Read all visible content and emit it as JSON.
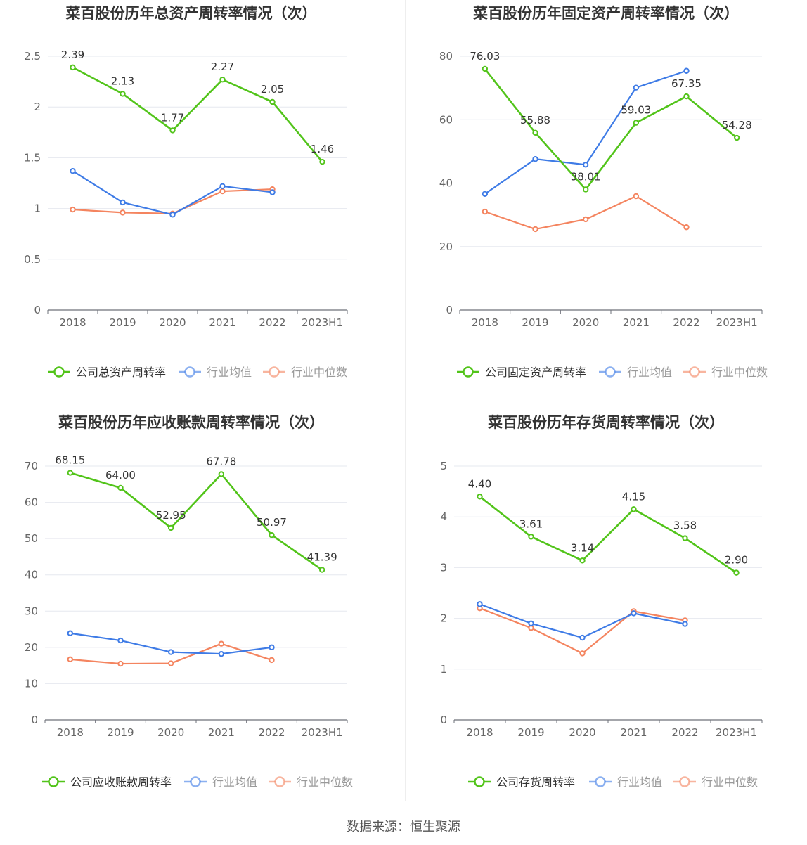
{
  "colors": {
    "company": "#52c41a",
    "avg": "#3e7be6",
    "median": "#f4845f",
    "grid": "#e6e8ef",
    "axis": "#666666"
  },
  "source_text": "数据来源：恒生聚源",
  "chart_data": [
    {
      "type": "line",
      "title": "菜百股份历年总资产周转率情况（次）",
      "categories": [
        "2018",
        "2019",
        "2020",
        "2021",
        "2022",
        "2023H1"
      ],
      "ylim": [
        0,
        2.5
      ],
      "yticks": [
        0,
        0.5,
        1,
        1.5,
        2,
        2.5
      ],
      "ytick_labels": [
        "0",
        "0.5",
        "1",
        "1.5",
        "2",
        "2.5"
      ],
      "legend_position": "bottom",
      "series": [
        {
          "name": "公司总资产周转率",
          "key": "company",
          "values": [
            2.39,
            2.13,
            1.77,
            2.27,
            2.05,
            1.46
          ],
          "labels": [
            "2.39",
            "2.13",
            "1.77",
            "2.27",
            "2.05",
            "1.46"
          ]
        },
        {
          "name": "行业均值",
          "key": "avg",
          "values": [
            1.37,
            1.06,
            0.94,
            1.22,
            1.16,
            null
          ]
        },
        {
          "name": "行业中位数",
          "key": "median",
          "values": [
            0.99,
            0.96,
            0.95,
            1.17,
            1.19,
            null
          ]
        }
      ]
    },
    {
      "type": "line",
      "title": "菜百股份历年固定资产周转率情况（次）",
      "categories": [
        "2018",
        "2019",
        "2020",
        "2021",
        "2022",
        "2023H1"
      ],
      "ylim": [
        0,
        80
      ],
      "yticks": [
        0,
        20,
        40,
        60,
        80
      ],
      "ytick_labels": [
        "0",
        "20",
        "40",
        "60",
        "80"
      ],
      "legend_position": "bottom",
      "series": [
        {
          "name": "公司固定资产周转率",
          "key": "company",
          "values": [
            76.03,
            55.88,
            38.01,
            59.03,
            67.35,
            54.28
          ],
          "labels": [
            "76.03",
            "55.88",
            "38.01",
            "59.03",
            "67.35",
            "54.28"
          ]
        },
        {
          "name": "行业均值",
          "key": "avg",
          "values": [
            36.6,
            47.6,
            45.8,
            70.1,
            75.4,
            null
          ]
        },
        {
          "name": "行业中位数",
          "key": "median",
          "values": [
            31.0,
            25.5,
            28.6,
            35.9,
            26.1,
            null
          ]
        }
      ]
    },
    {
      "type": "line",
      "title": "菜百股份历年应收账款周转率情况（次）",
      "categories": [
        "2018",
        "2019",
        "2020",
        "2021",
        "2022",
        "2023H1"
      ],
      "ylim": [
        0,
        70
      ],
      "yticks": [
        0,
        10,
        20,
        30,
        40,
        50,
        60,
        70
      ],
      "ytick_labels": [
        "0",
        "10",
        "20",
        "30",
        "40",
        "50",
        "60",
        "70"
      ],
      "legend_position": "bottom",
      "series": [
        {
          "name": "公司应收账款周转率",
          "key": "company",
          "values": [
            68.15,
            64.0,
            52.95,
            67.78,
            50.97,
            41.39
          ],
          "labels": [
            "68.15",
            "64.00",
            "52.95",
            "67.78",
            "50.97",
            "41.39"
          ]
        },
        {
          "name": "行业均值",
          "key": "avg",
          "values": [
            23.9,
            21.9,
            18.7,
            18.2,
            20.0,
            null
          ]
        },
        {
          "name": "行业中位数",
          "key": "median",
          "values": [
            16.7,
            15.5,
            15.6,
            21.0,
            16.5,
            null
          ]
        }
      ]
    },
    {
      "type": "line",
      "title": "菜百股份历年存货周转率情况（次）",
      "categories": [
        "2018",
        "2019",
        "2020",
        "2021",
        "2022",
        "2023H1"
      ],
      "ylim": [
        0,
        5
      ],
      "yticks": [
        0,
        1,
        2,
        3,
        4,
        5
      ],
      "ytick_labels": [
        "0",
        "1",
        "2",
        "3",
        "4",
        "5"
      ],
      "legend_position": "bottom",
      "series": [
        {
          "name": "公司存货周转率",
          "key": "company",
          "values": [
            4.4,
            3.61,
            3.14,
            4.15,
            3.58,
            2.9
          ],
          "labels": [
            "4.40",
            "3.61",
            "3.14",
            "4.15",
            "3.58",
            "2.90"
          ]
        },
        {
          "name": "行业均值",
          "key": "avg",
          "values": [
            2.28,
            1.9,
            1.62,
            2.1,
            1.89,
            null
          ]
        },
        {
          "name": "行业中位数",
          "key": "median",
          "values": [
            2.2,
            1.81,
            1.31,
            2.14,
            1.96,
            null
          ]
        }
      ]
    }
  ]
}
